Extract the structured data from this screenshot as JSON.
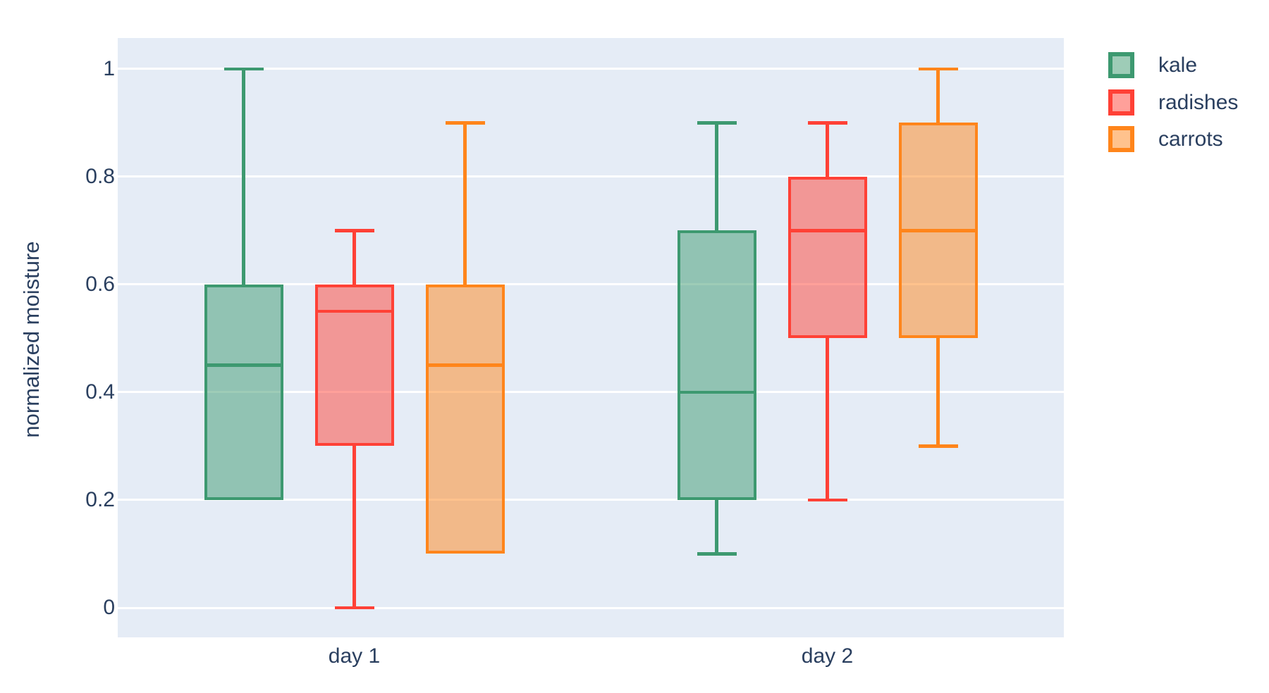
{
  "chart_data": {
    "type": "box",
    "title": "",
    "xlabel": "",
    "ylabel": "normalized moisture",
    "categories": [
      "day 1",
      "day 2"
    ],
    "ytick_labels": [
      "0",
      "0.2",
      "0.4",
      "0.6",
      "0.8",
      "1"
    ],
    "ytick_values": [
      0,
      0.2,
      0.4,
      0.6,
      0.8,
      1
    ],
    "ylim": [
      -0.0549,
      1.0575
    ],
    "grid": true,
    "legend_position": "top-right-outside",
    "colors": {
      "plot_background": "#E5ECF6",
      "paper_background": "#ffffff",
      "gridline": "#ffffff",
      "text": "#2A3F5F"
    },
    "series": [
      {
        "name": "kale",
        "line_color": "#3D9970",
        "fill_color": "rgba(61,153,112,0.5)",
        "boxes": [
          {
            "category": "day 1",
            "low": 0.2,
            "q1": 0.2,
            "median": 0.45,
            "q3": 0.6,
            "high": 1.0
          },
          {
            "category": "day 2",
            "low": 0.1,
            "q1": 0.2,
            "median": 0.4,
            "q3": 0.7,
            "high": 0.9
          }
        ]
      },
      {
        "name": "radishes",
        "line_color": "#FF4136",
        "fill_color": "rgba(255,65,54,0.5)",
        "boxes": [
          {
            "category": "day 1",
            "low": 0.0,
            "q1": 0.3,
            "median": 0.55,
            "q3": 0.6,
            "high": 0.7
          },
          {
            "category": "day 2",
            "low": 0.2,
            "q1": 0.5,
            "median": 0.7,
            "q3": 0.8,
            "high": 0.9
          }
        ]
      },
      {
        "name": "carrots",
        "line_color": "#FF851B",
        "fill_color": "rgba(255,133,27,0.5)",
        "boxes": [
          {
            "category": "day 1",
            "low": 0.1,
            "q1": 0.1,
            "median": 0.45,
            "q3": 0.6,
            "high": 0.9
          },
          {
            "category": "day 2",
            "low": 0.3,
            "q1": 0.5,
            "median": 0.7,
            "q3": 0.9,
            "high": 1.0
          }
        ]
      }
    ]
  }
}
